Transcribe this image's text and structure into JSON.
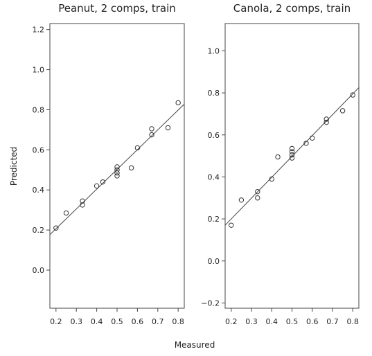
{
  "figure": {
    "xlabel": "Measured",
    "ylabel": "Predicted"
  },
  "chart_data": [
    {
      "type": "scatter",
      "title": "Peanut, 2 comps, train",
      "xlabel": "Measured",
      "ylabel": "Predicted",
      "xlim": [
        0.17,
        0.83
      ],
      "ylim": [
        -0.19,
        1.23
      ],
      "xticks": [
        0.2,
        0.3,
        0.4,
        0.5,
        0.6,
        0.7,
        0.8
      ],
      "xtick_labels": [
        "0.2",
        "0.3",
        "0.4",
        "0.5",
        "0.6",
        "0.7",
        "0.8"
      ],
      "yticks": [
        0.0,
        0.2,
        0.4,
        0.6,
        0.8,
        1.0,
        1.2
      ],
      "ytick_labels": [
        "0.0",
        "0.2",
        "0.4",
        "0.6",
        "0.8",
        "1.0",
        "1.2"
      ],
      "grid": false,
      "points": [
        {
          "x": 0.2,
          "y": 0.21
        },
        {
          "x": 0.25,
          "y": 0.285
        },
        {
          "x": 0.33,
          "y": 0.325
        },
        {
          "x": 0.33,
          "y": 0.345
        },
        {
          "x": 0.4,
          "y": 0.42
        },
        {
          "x": 0.43,
          "y": 0.44
        },
        {
          "x": 0.5,
          "y": 0.47
        },
        {
          "x": 0.5,
          "y": 0.485
        },
        {
          "x": 0.5,
          "y": 0.5
        },
        {
          "x": 0.5,
          "y": 0.515
        },
        {
          "x": 0.57,
          "y": 0.51
        },
        {
          "x": 0.6,
          "y": 0.61
        },
        {
          "x": 0.67,
          "y": 0.675
        },
        {
          "x": 0.67,
          "y": 0.705
        },
        {
          "x": 0.75,
          "y": 0.71
        },
        {
          "x": 0.8,
          "y": 0.835
        }
      ],
      "fit_line": [
        {
          "x": 0.17,
          "y": 0.177
        },
        {
          "x": 0.83,
          "y": 0.828
        }
      ]
    },
    {
      "type": "scatter",
      "title": "Canola, 2 comps, train",
      "xlabel": "Measured",
      "ylabel": "Predicted",
      "xlim": [
        0.17,
        0.83
      ],
      "ylim": [
        -0.225,
        1.13
      ],
      "xticks": [
        0.2,
        0.3,
        0.4,
        0.5,
        0.6,
        0.7,
        0.8
      ],
      "xtick_labels": [
        "0.2",
        "0.3",
        "0.4",
        "0.5",
        "0.6",
        "0.7",
        "0.8"
      ],
      "yticks": [
        -0.2,
        0.0,
        0.2,
        0.4,
        0.6,
        0.8,
        1.0
      ],
      "ytick_labels": [
        "−0.2",
        "0.0",
        "0.2",
        "0.4",
        "0.6",
        "0.8",
        "1.0"
      ],
      "grid": false,
      "points": [
        {
          "x": 0.2,
          "y": 0.17
        },
        {
          "x": 0.25,
          "y": 0.29
        },
        {
          "x": 0.33,
          "y": 0.3
        },
        {
          "x": 0.33,
          "y": 0.33
        },
        {
          "x": 0.4,
          "y": 0.39
        },
        {
          "x": 0.43,
          "y": 0.495
        },
        {
          "x": 0.5,
          "y": 0.49
        },
        {
          "x": 0.5,
          "y": 0.505
        },
        {
          "x": 0.5,
          "y": 0.52
        },
        {
          "x": 0.5,
          "y": 0.535
        },
        {
          "x": 0.57,
          "y": 0.56
        },
        {
          "x": 0.6,
          "y": 0.585
        },
        {
          "x": 0.67,
          "y": 0.66
        },
        {
          "x": 0.67,
          "y": 0.675
        },
        {
          "x": 0.75,
          "y": 0.715
        },
        {
          "x": 0.8,
          "y": 0.79
        }
      ],
      "fit_line": [
        {
          "x": 0.17,
          "y": 0.17
        },
        {
          "x": 0.83,
          "y": 0.825
        }
      ]
    }
  ]
}
